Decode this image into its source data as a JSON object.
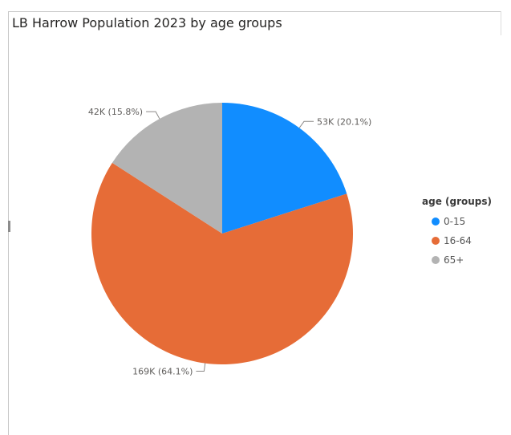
{
  "chart_data": {
    "type": "pie",
    "title": "LB Harrow Population 2023 by age groups",
    "legend_title": "age (groups)",
    "legend_position": "right",
    "slices": [
      {
        "label": "0-15",
        "value": 53000,
        "percent": 20.1,
        "data_label": "53K (20.1%)",
        "color": "#118dff"
      },
      {
        "label": "16-64",
        "value": 169000,
        "percent": 64.1,
        "data_label": "169K (64.1%)",
        "color": "#e66c37"
      },
      {
        "label": "65+",
        "value": 42000,
        "percent": 15.8,
        "data_label": "42K (15.8%)",
        "color": "#b3b3b3"
      }
    ]
  }
}
